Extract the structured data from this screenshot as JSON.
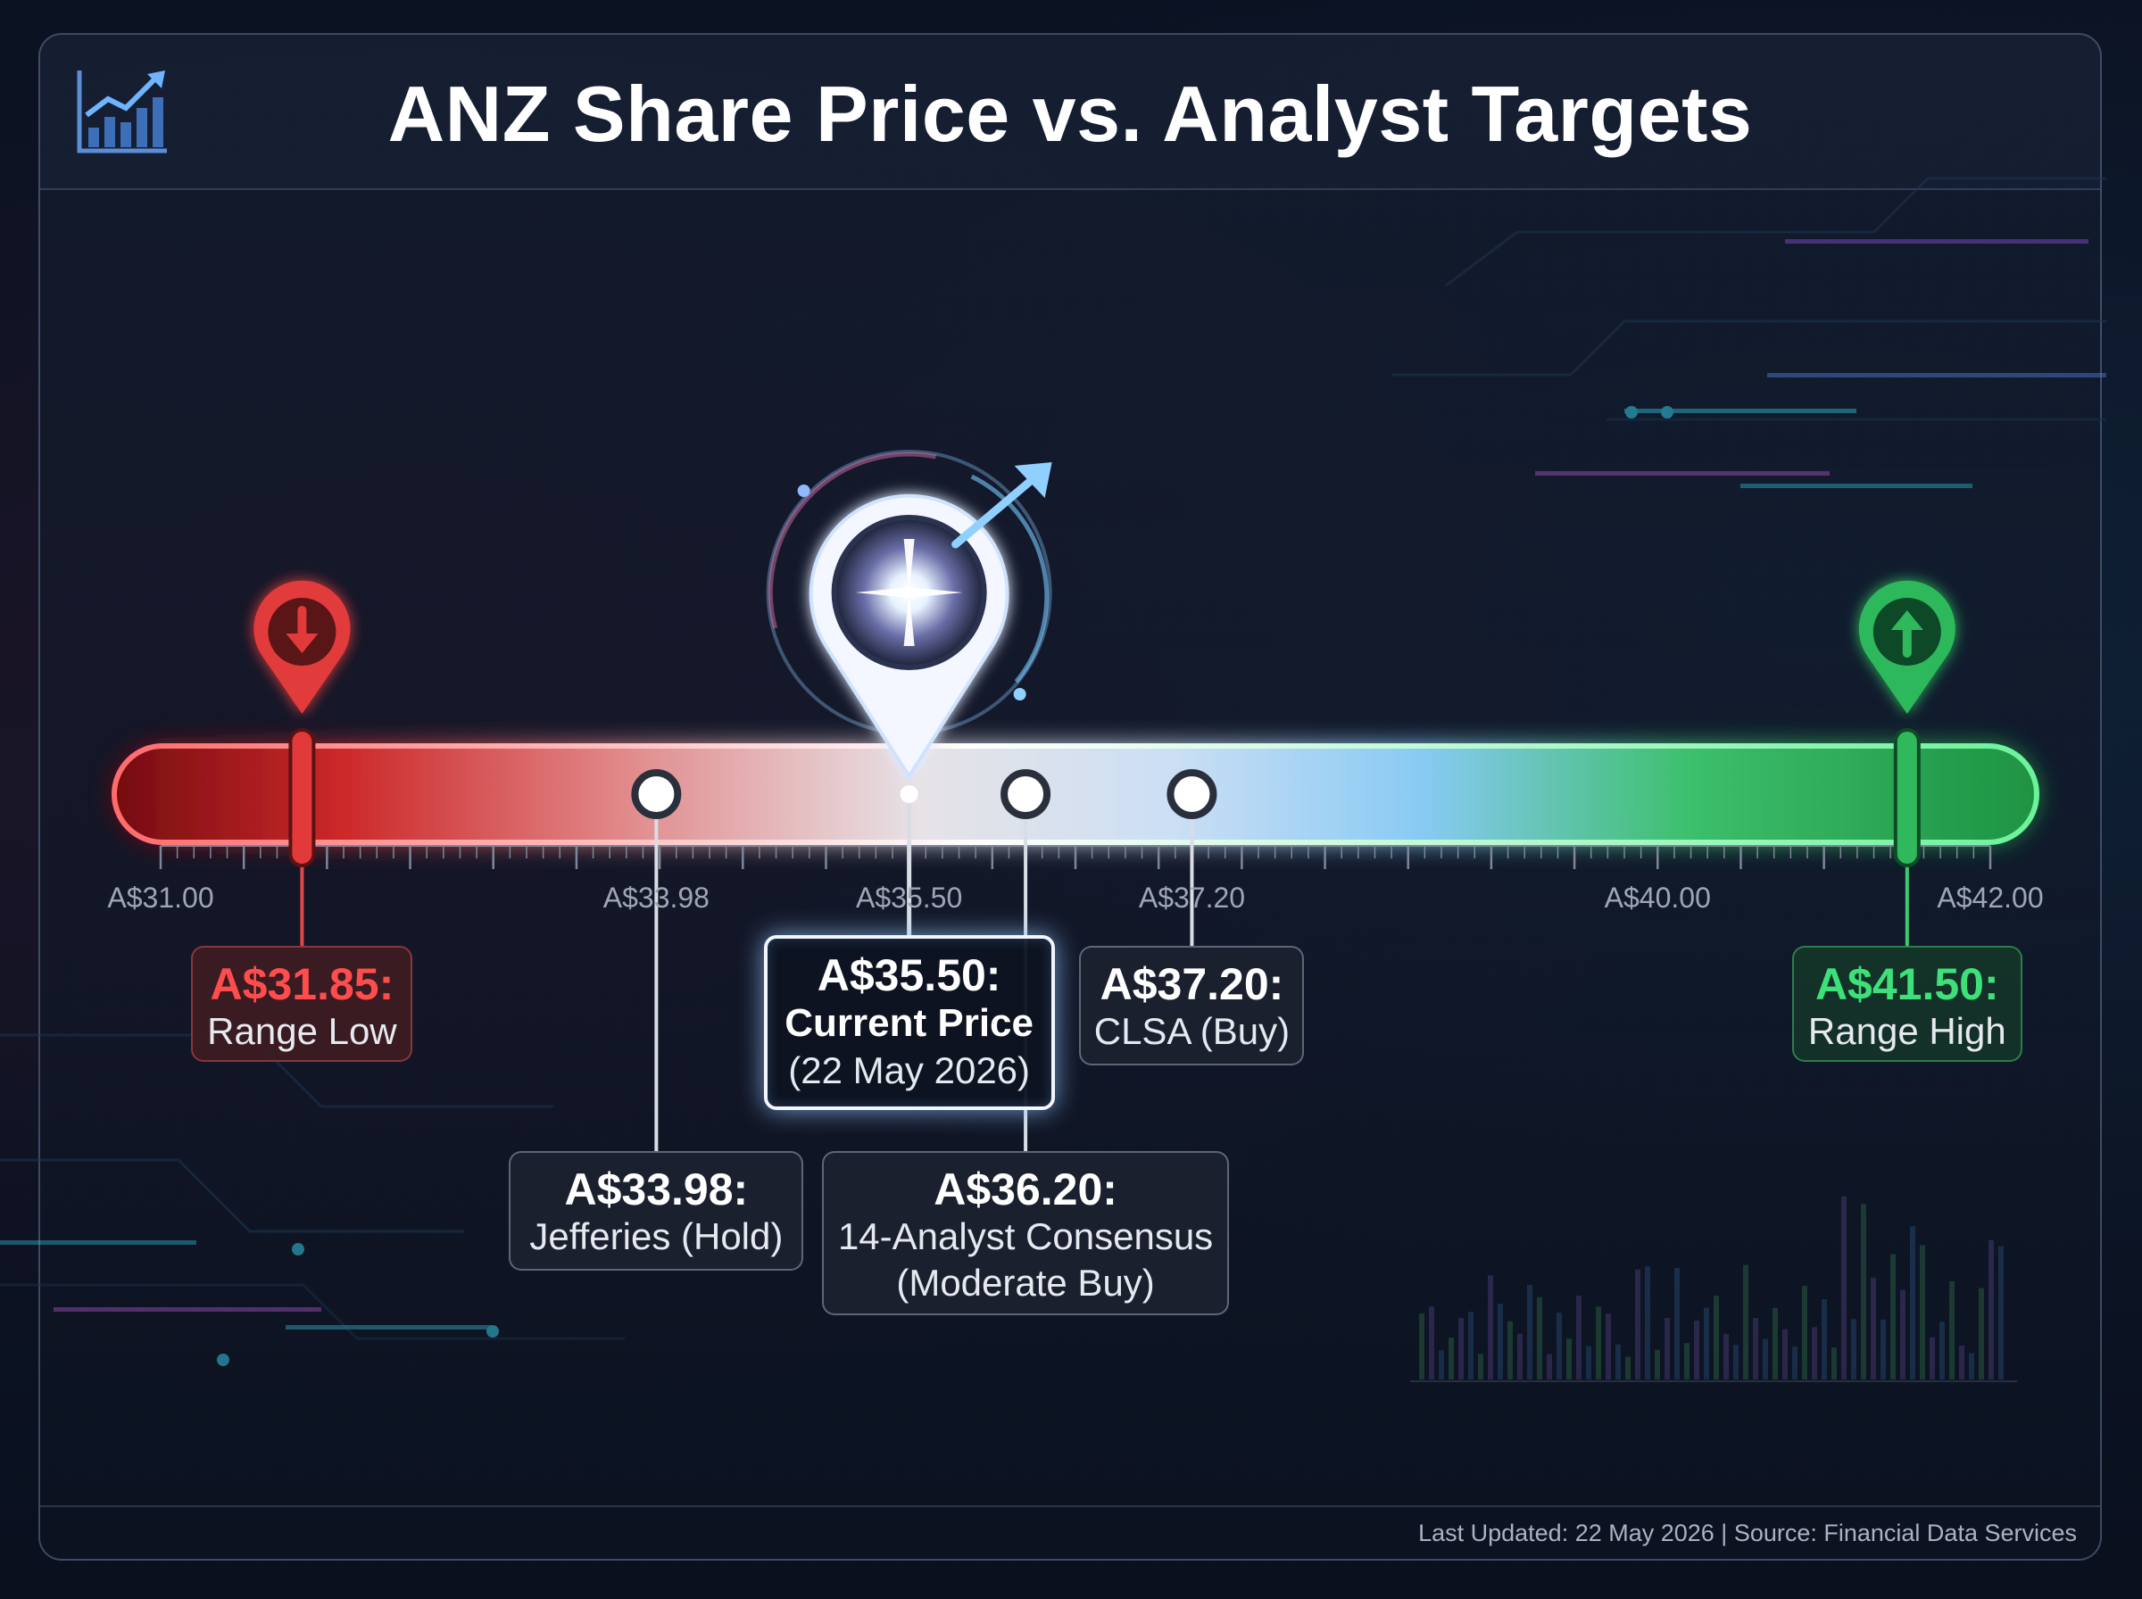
{
  "header": {
    "title": "ANZ Share Price vs. Analyst Targets",
    "logo_icon": "trending-chart-icon"
  },
  "footer": {
    "text": "Last Updated: 22 May 2026 | Source: Financial Data Services"
  },
  "colors": {
    "low": "#ff4d4d",
    "high": "#3ee07a",
    "current": "#ffffff",
    "neutral": "#ffffff"
  },
  "chart_data": {
    "type": "range-scale",
    "title": "ANZ Share Price vs. Analyst Targets",
    "xlim": [
      31.0,
      42.0
    ],
    "tick_labels": [
      {
        "value": 31.0,
        "label": "A$31.00"
      },
      {
        "value": 33.98,
        "label": "A$33.98"
      },
      {
        "value": 35.5,
        "label": "A$35.50"
      },
      {
        "value": 37.2,
        "label": "A$37.20"
      },
      {
        "value": 40.0,
        "label": "A$40.00"
      },
      {
        "value": 42.0,
        "label": "A$42.00"
      }
    ],
    "markers": [
      {
        "kind": "low",
        "value": 31.85,
        "value_label": "A$31.85:",
        "label": "Range Low",
        "icon": "arrow-down-icon"
      },
      {
        "kind": "target",
        "value": 33.98,
        "value_label": "A$33.98:",
        "label": "Jefferies (Hold)"
      },
      {
        "kind": "current",
        "value": 35.5,
        "value_label": "A$35.50:",
        "label": "Current Price",
        "sublabel": "(22 May 2026)",
        "icon": "location-pin-icon"
      },
      {
        "kind": "target",
        "value": 36.2,
        "value_label": "A$36.20:",
        "label": "14-Analyst Consensus",
        "sublabel": "(Moderate Buy)"
      },
      {
        "kind": "target",
        "value": 37.2,
        "value_label": "A$37.20:",
        "label": "CLSA (Buy)"
      },
      {
        "kind": "high",
        "value": 41.5,
        "value_label": "A$41.50:",
        "label": "Range High",
        "icon": "arrow-up-icon"
      }
    ]
  }
}
